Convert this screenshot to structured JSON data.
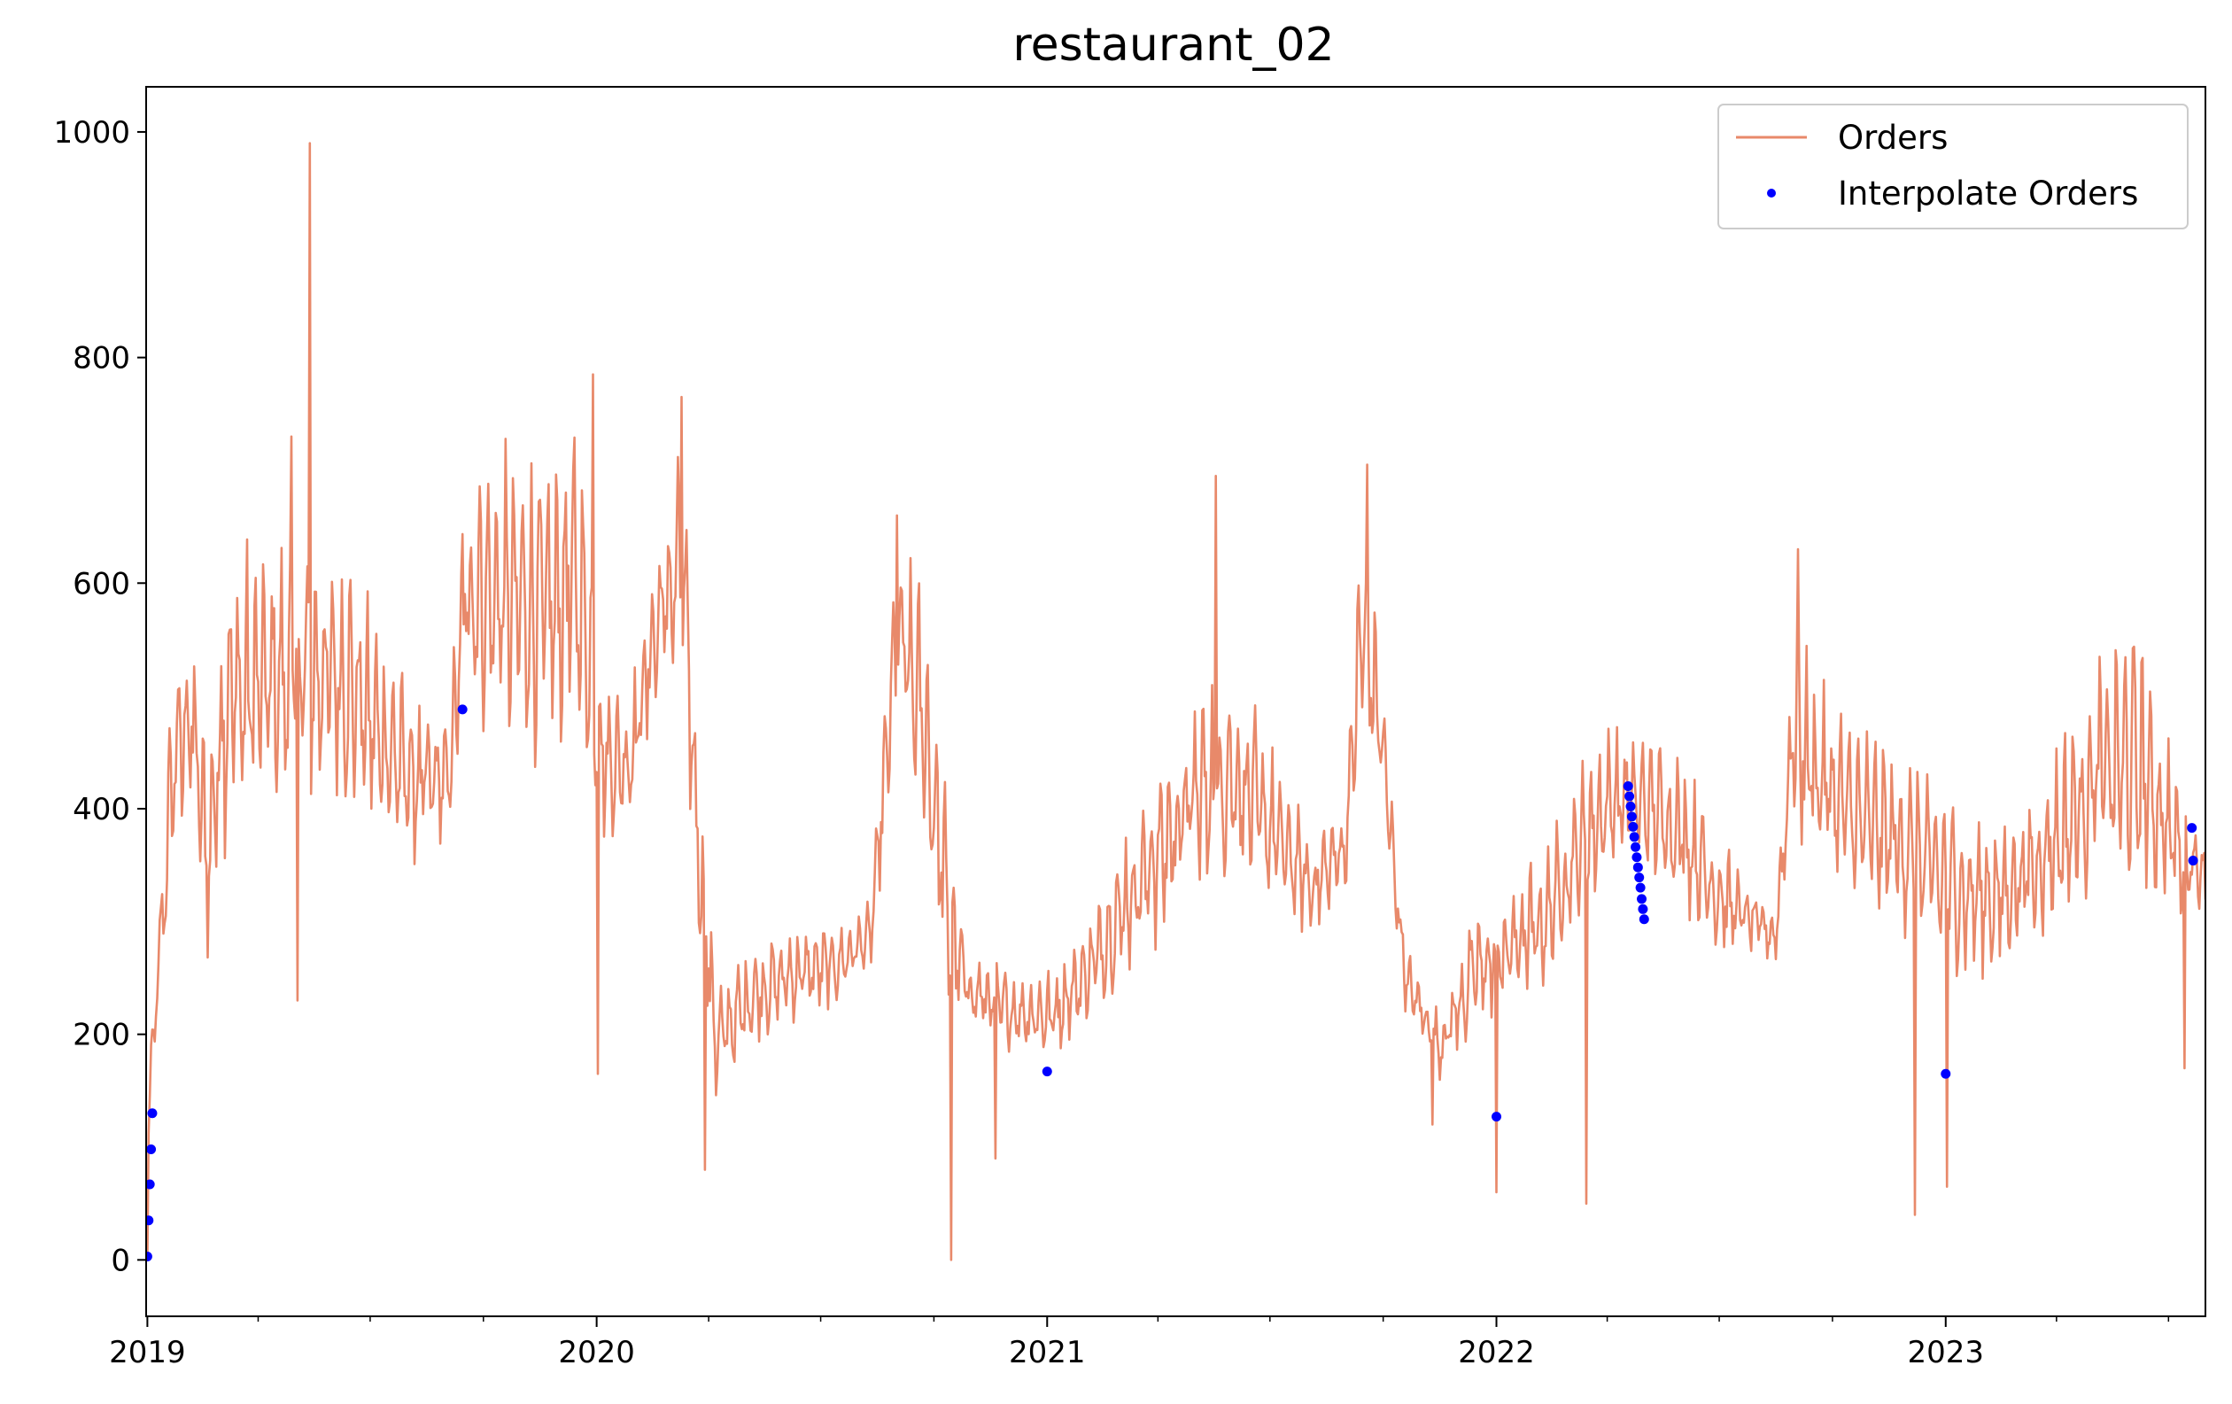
{
  "chart_data": {
    "type": "line",
    "title": "restaurant_02",
    "xlabel": "",
    "ylabel": "",
    "x_range": [
      "2018-12-31",
      "2023-07-31"
    ],
    "ylim": [
      -50,
      1040
    ],
    "grid": false,
    "legend_position": "top-right",
    "y_ticks": [
      0,
      200,
      400,
      600,
      800,
      1000
    ],
    "x_ticks": [
      {
        "date": "2019-01-01",
        "label": "2019"
      },
      {
        "date": "2020-01-01",
        "label": "2020"
      },
      {
        "date": "2021-01-01",
        "label": "2021"
      },
      {
        "date": "2022-01-01",
        "label": "2022"
      },
      {
        "date": "2023-01-01",
        "label": "2023"
      }
    ],
    "x_minor_ticks": [
      "2019-04-01",
      "2019-07-01",
      "2019-10-01",
      "2020-04-01",
      "2020-07-01",
      "2020-10-01",
      "2021-04-01",
      "2021-07-01",
      "2021-10-01",
      "2022-04-01",
      "2022-07-01",
      "2022-10-01",
      "2023-04-01",
      "2023-07-01"
    ],
    "series": [
      {
        "name": "Orders",
        "style": "line",
        "color": "#E8896A",
        "weekly_range": [
          [
            "2019-01-01",
            60,
            150
          ],
          [
            "2019-01-08",
            170,
            260
          ],
          [
            "2019-01-22",
            280,
            540
          ],
          [
            "2019-02-05",
            300,
            600
          ],
          [
            "2019-02-19",
            200,
            450
          ],
          [
            "2019-03-05",
            260,
            650
          ],
          [
            "2019-04-02",
            300,
            640
          ],
          [
            "2019-05-07",
            320,
            650
          ],
          [
            "2019-06-11",
            320,
            640
          ],
          [
            "2019-07-09",
            300,
            570
          ],
          [
            "2019-08-06",
            300,
            500
          ],
          [
            "2019-09-03",
            340,
            480
          ],
          [
            "2019-09-17",
            400,
            720
          ],
          [
            "2019-10-15",
            360,
            730
          ],
          [
            "2019-11-19",
            340,
            720
          ],
          [
            "2019-12-17",
            360,
            760
          ],
          [
            "2020-01-07",
            320,
            520
          ],
          [
            "2020-01-28",
            350,
            500
          ],
          [
            "2020-02-18",
            400,
            660
          ],
          [
            "2020-03-10",
            420,
            740
          ],
          [
            "2020-03-24",
            230,
            440
          ],
          [
            "2020-04-07",
            100,
            250
          ],
          [
            "2020-05-05",
            160,
            280
          ],
          [
            "2020-06-09",
            180,
            300
          ],
          [
            "2020-07-14",
            200,
            300
          ],
          [
            "2020-08-11",
            240,
            320
          ],
          [
            "2020-09-01",
            400,
            650
          ],
          [
            "2020-09-22",
            300,
            600
          ],
          [
            "2020-10-13",
            150,
            400
          ],
          [
            "2020-10-27",
            180,
            280
          ],
          [
            "2020-12-01",
            160,
            260
          ],
          [
            "2021-01-05",
            150,
            260
          ],
          [
            "2021-02-02",
            180,
            300
          ],
          [
            "2021-03-02",
            200,
            380
          ],
          [
            "2021-04-06",
            220,
            460
          ],
          [
            "2021-05-04",
            250,
            520
          ],
          [
            "2021-06-01",
            260,
            540
          ],
          [
            "2021-07-06",
            260,
            450
          ],
          [
            "2021-08-03",
            250,
            380
          ],
          [
            "2021-08-31",
            280,
            420
          ],
          [
            "2021-09-14",
            380,
            680
          ],
          [
            "2021-09-28",
            350,
            560
          ],
          [
            "2021-10-19",
            200,
            280
          ],
          [
            "2021-11-16",
            140,
            220
          ],
          [
            "2021-12-14",
            150,
            320
          ],
          [
            "2022-01-11",
            160,
            350
          ],
          [
            "2022-02-08",
            200,
            360
          ],
          [
            "2022-03-08",
            240,
            440
          ],
          [
            "2022-04-05",
            300,
            480
          ],
          [
            "2022-05-03",
            300,
            470
          ],
          [
            "2022-05-31",
            260,
            460
          ],
          [
            "2022-06-28",
            240,
            380
          ],
          [
            "2022-07-26",
            240,
            340
          ],
          [
            "2022-08-16",
            250,
            310
          ],
          [
            "2022-08-30",
            300,
            580
          ],
          [
            "2022-09-20",
            280,
            520
          ],
          [
            "2022-10-18",
            260,
            480
          ],
          [
            "2022-11-29",
            220,
            460
          ],
          [
            "2022-12-20",
            200,
            440
          ],
          [
            "2023-01-17",
            200,
            400
          ],
          [
            "2023-02-14",
            200,
            400
          ],
          [
            "2023-03-14",
            220,
            430
          ],
          [
            "2023-04-11",
            240,
            480
          ],
          [
            "2023-05-09",
            240,
            560
          ],
          [
            "2023-06-06",
            240,
            570
          ],
          [
            "2023-07-04",
            240,
            460
          ],
          [
            "2023-07-31",
            280,
            380
          ]
        ],
        "spikes": [
          [
            "2019-01-01",
            0
          ],
          [
            "2019-05-13",
            990
          ],
          [
            "2019-04-28",
            730
          ],
          [
            "2019-05-03",
            230
          ],
          [
            "2019-12-29",
            785
          ],
          [
            "2020-01-02",
            165
          ],
          [
            "2020-03-10",
            765
          ],
          [
            "2020-03-29",
            80
          ],
          [
            "2020-09-01",
            660
          ],
          [
            "2020-10-15",
            0
          ],
          [
            "2020-11-20",
            90
          ],
          [
            "2021-05-18",
            695
          ],
          [
            "2021-09-18",
            705
          ],
          [
            "2021-11-10",
            120
          ],
          [
            "2022-01-01",
            60
          ],
          [
            "2022-03-15",
            50
          ],
          [
            "2022-09-03",
            630
          ],
          [
            "2022-12-07",
            40
          ],
          [
            "2023-01-02",
            65
          ],
          [
            "2023-07-14",
            170
          ]
        ]
      },
      {
        "name": "Interpolate Orders",
        "style": "points",
        "color": "#0000FF",
        "points": [
          [
            "2019-01-01",
            3
          ],
          [
            "2019-01-02",
            35
          ],
          [
            "2019-01-03",
            67
          ],
          [
            "2019-01-04",
            98
          ],
          [
            "2019-01-05",
            130
          ],
          [
            "2019-09-14",
            488
          ],
          [
            "2021-01-01",
            167
          ],
          [
            "2022-01-01",
            127
          ],
          [
            "2022-04-18",
            420
          ],
          [
            "2022-04-19",
            411
          ],
          [
            "2022-04-20",
            402
          ],
          [
            "2022-04-21",
            393
          ],
          [
            "2022-04-22",
            384
          ],
          [
            "2022-04-23",
            375
          ],
          [
            "2022-04-24",
            366
          ],
          [
            "2022-04-25",
            357
          ],
          [
            "2022-04-26",
            348
          ],
          [
            "2022-04-27",
            339
          ],
          [
            "2022-04-28",
            330
          ],
          [
            "2022-04-29",
            320
          ],
          [
            "2022-04-30",
            311
          ],
          [
            "2022-05-01",
            302
          ],
          [
            "2023-01-01",
            165
          ],
          [
            "2023-07-20",
            383
          ],
          [
            "2023-07-21",
            354
          ]
        ]
      }
    ]
  }
}
